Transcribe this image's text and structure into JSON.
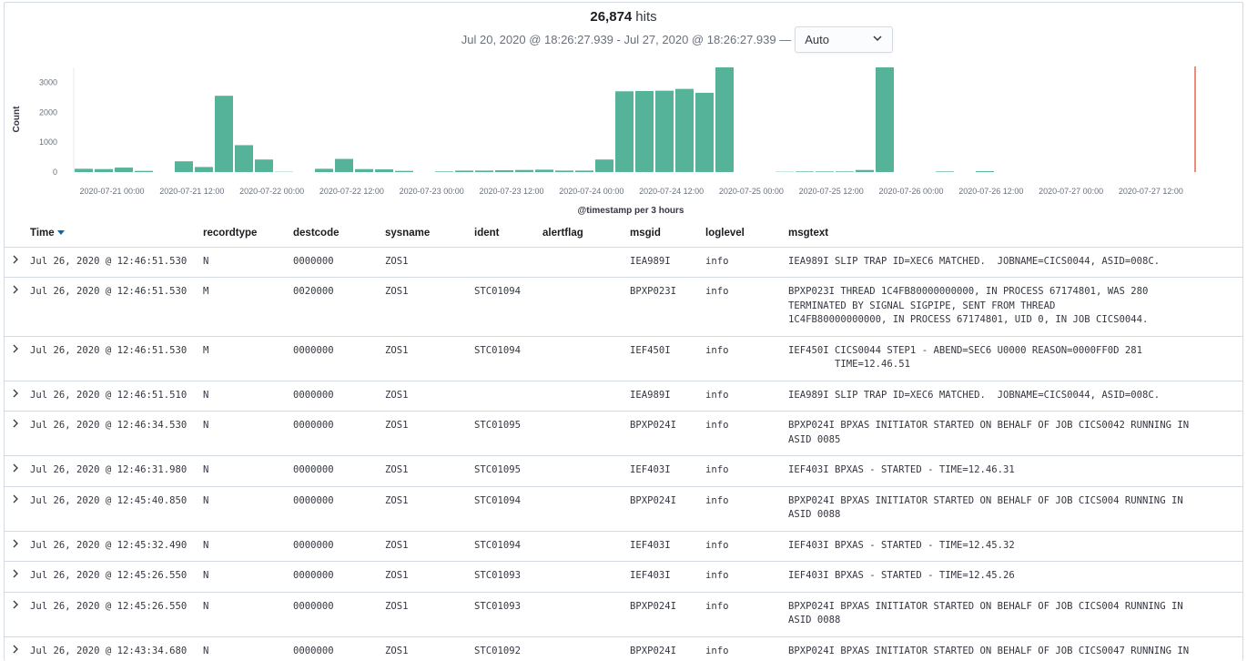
{
  "header": {
    "hits_count": "26,874",
    "hits_label": "hits",
    "range_text": "Jul 20, 2020 @ 18:26:27.939 - Jul 27, 2020 @ 18:26:27.939 —",
    "interval_value": "Auto"
  },
  "chart_data": {
    "type": "bar",
    "ylabel": "Count",
    "xlabel": "@timestamp per 3 hours",
    "ylim": [
      0,
      3500
    ],
    "yticks": [
      "0",
      "1000",
      "2000",
      "3000"
    ],
    "ytick_values": [
      0,
      1000,
      2000,
      3000
    ],
    "xticks": [
      "2020-07-21 00:00",
      "2020-07-21 12:00",
      "2020-07-22 00:00",
      "2020-07-22 12:00",
      "2020-07-23 00:00",
      "2020-07-23 12:00",
      "2020-07-24 00:00",
      "2020-07-24 12:00",
      "2020-07-25 00:00",
      "2020-07-25 12:00",
      "2020-07-26 00:00",
      "2020-07-26 12:00",
      "2020-07-27 00:00",
      "2020-07-27 12:00"
    ],
    "bar_color": "#54b399",
    "now_line_color": "#e7664c",
    "values": [
      110,
      100,
      150,
      40,
      0,
      360,
      170,
      2550,
      900,
      420,
      10,
      0,
      110,
      440,
      100,
      90,
      40,
      0,
      20,
      50,
      50,
      60,
      70,
      80,
      50,
      50,
      420,
      2700,
      2710,
      2720,
      2780,
      2650,
      3500,
      0,
      0,
      10,
      20,
      20,
      20,
      70,
      3500,
      0,
      0,
      20,
      0,
      30,
      0,
      0,
      0,
      0,
      0,
      0,
      0,
      0,
      0,
      0
    ]
  },
  "table": {
    "columns": [
      "Time",
      "recordtype",
      "destcode",
      "sysname",
      "ident",
      "alertflag",
      "msgid",
      "loglevel",
      "msgtext"
    ],
    "rows": [
      {
        "time": "Jul 26, 2020 @ 12:46:51.530",
        "recordtype": "N",
        "destcode": "0000000",
        "sysname": "ZOS1",
        "ident": "",
        "alertflag": "",
        "msgid": "IEA989I",
        "loglevel": "info",
        "msgtext": "IEA989I SLIP TRAP ID=XEC6 MATCHED.  JOBNAME=CICS0044, ASID=008C."
      },
      {
        "time": "Jul 26, 2020 @ 12:46:51.530",
        "recordtype": "M",
        "destcode": "0020000",
        "sysname": "ZOS1",
        "ident": "STC01094",
        "alertflag": "",
        "msgid": "BPXP023I",
        "loglevel": "info",
        "msgtext": "BPXP023I THREAD 1C4FB80000000000, IN PROCESS 67174801, WAS 280\nTERMINATED BY SIGNAL SIGPIPE, SENT FROM THREAD\n1C4FB80000000000, IN PROCESS 67174801, UID 0, IN JOB CICS0044."
      },
      {
        "time": "Jul 26, 2020 @ 12:46:51.530",
        "recordtype": "M",
        "destcode": "0000000",
        "sysname": "ZOS1",
        "ident": "STC01094",
        "alertflag": "",
        "msgid": "IEF450I",
        "loglevel": "info",
        "msgtext": "IEF450I CICS0044 STEP1 - ABEND=SEC6 U0000 REASON=0000FF0D 281\n        TIME=12.46.51"
      },
      {
        "time": "Jul 26, 2020 @ 12:46:51.510",
        "recordtype": "N",
        "destcode": "0000000",
        "sysname": "ZOS1",
        "ident": "",
        "alertflag": "",
        "msgid": "IEA989I",
        "loglevel": "info",
        "msgtext": "IEA989I SLIP TRAP ID=XEC6 MATCHED.  JOBNAME=CICS0044, ASID=008C."
      },
      {
        "time": "Jul 26, 2020 @ 12:46:34.530",
        "recordtype": "N",
        "destcode": "0000000",
        "sysname": "ZOS1",
        "ident": "STC01095",
        "alertflag": "",
        "msgid": "BPXP024I",
        "loglevel": "info",
        "msgtext": "BPXP024I BPXAS INITIATOR STARTED ON BEHALF OF JOB CICS0042 RUNNING IN\nASID 0085"
      },
      {
        "time": "Jul 26, 2020 @ 12:46:31.980",
        "recordtype": "N",
        "destcode": "0000000",
        "sysname": "ZOS1",
        "ident": "STC01095",
        "alertflag": "",
        "msgid": "IEF403I",
        "loglevel": "info",
        "msgtext": "IEF403I BPXAS - STARTED - TIME=12.46.31"
      },
      {
        "time": "Jul 26, 2020 @ 12:45:40.850",
        "recordtype": "N",
        "destcode": "0000000",
        "sysname": "ZOS1",
        "ident": "STC01094",
        "alertflag": "",
        "msgid": "BPXP024I",
        "loglevel": "info",
        "msgtext": "BPXP024I BPXAS INITIATOR STARTED ON BEHALF OF JOB CICS004 RUNNING IN\nASID 0088"
      },
      {
        "time": "Jul 26, 2020 @ 12:45:32.490",
        "recordtype": "N",
        "destcode": "0000000",
        "sysname": "ZOS1",
        "ident": "STC01094",
        "alertflag": "",
        "msgid": "IEF403I",
        "loglevel": "info",
        "msgtext": "IEF403I BPXAS - STARTED - TIME=12.45.32"
      },
      {
        "time": "Jul 26, 2020 @ 12:45:26.550",
        "recordtype": "N",
        "destcode": "0000000",
        "sysname": "ZOS1",
        "ident": "STC01093",
        "alertflag": "",
        "msgid": "IEF403I",
        "loglevel": "info",
        "msgtext": "IEF403I BPXAS - STARTED - TIME=12.45.26"
      },
      {
        "time": "Jul 26, 2020 @ 12:45:26.550",
        "recordtype": "N",
        "destcode": "0000000",
        "sysname": "ZOS1",
        "ident": "STC01093",
        "alertflag": "",
        "msgid": "BPXP024I",
        "loglevel": "info",
        "msgtext": "BPXP024I BPXAS INITIATOR STARTED ON BEHALF OF JOB CICS004 RUNNING IN\nASID 0088"
      },
      {
        "time": "Jul 26, 2020 @ 12:43:34.680",
        "recordtype": "N",
        "destcode": "0000000",
        "sysname": "ZOS1",
        "ident": "STC01092",
        "alertflag": "",
        "msgid": "BPXP024I",
        "loglevel": "info",
        "msgtext": "BPXP024I BPXAS INITIATOR STARTED ON BEHALF OF JOB CICS0047 RUNNING IN"
      }
    ]
  }
}
